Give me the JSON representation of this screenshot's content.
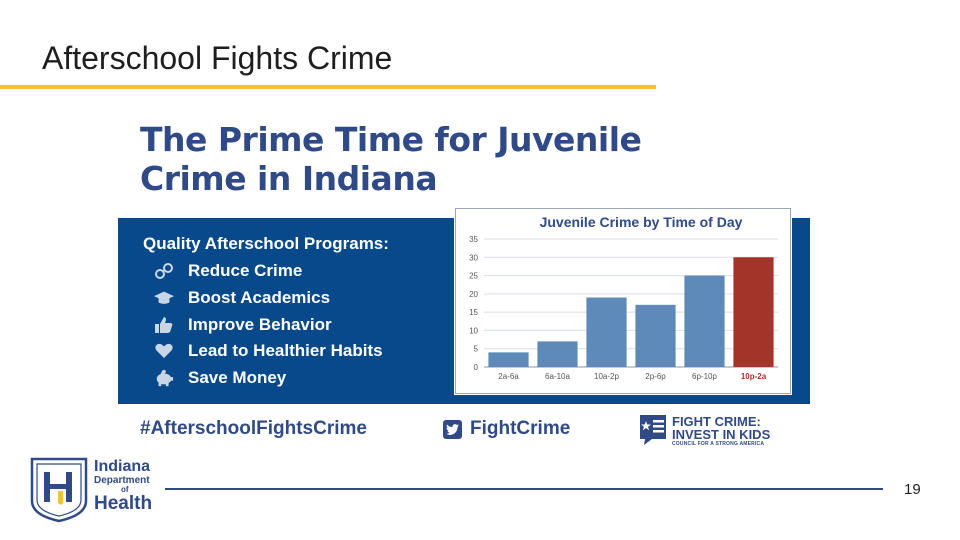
{
  "slide": {
    "title": "Afterschool Fights Crime",
    "page_number": "19"
  },
  "infographic": {
    "headline_line1": "The Prime Time for Juvenile",
    "headline_line2": "Crime in Indiana",
    "benefits_heading": "Quality Afterschool Programs:",
    "benefits": [
      {
        "label": "Reduce Crime",
        "icon": "handcuffs-icon"
      },
      {
        "label": "Boost Academics",
        "icon": "graduation-cap-icon"
      },
      {
        "label": "Improve Behavior",
        "icon": "thumbs-up-icon"
      },
      {
        "label": "Lead to Healthier Habits",
        "icon": "heart-icon"
      },
      {
        "label": "Save Money",
        "icon": "piggy-bank-icon"
      }
    ],
    "hashtag": "#AfterschoolFightsCrime",
    "twitter_handle": "FightCrime",
    "org_logo": {
      "line1": "FIGHT CRIME:",
      "line2": "INVEST IN KIDS",
      "line3": "COUNCIL FOR A STRONG AMERICA"
    },
    "colors": {
      "panel_blue": "#07498a",
      "headline_blue": "#2f4a86",
      "bar_blue": "#5d8ab9",
      "bar_red": "#a2342a",
      "accent_yellow": "#f2c32e"
    }
  },
  "chart_data": {
    "type": "bar",
    "title": "Juvenile Crime by Time of Day",
    "categories": [
      "2a-6a",
      "6a-10a",
      "10a-2p",
      "2p-6p",
      "6p-10p",
      "10p-2a"
    ],
    "values": [
      4,
      7,
      19,
      17,
      25,
      30
    ],
    "highlight_index": 5,
    "ylim": [
      0,
      35
    ],
    "yticks": [
      0,
      5,
      10,
      15,
      20,
      25,
      30,
      35
    ],
    "grid": true,
    "xlabel": "",
    "ylabel": ""
  },
  "agency_logo": {
    "line1": "Indiana",
    "line2": "Department",
    "line3": "of",
    "line4": "Health"
  }
}
